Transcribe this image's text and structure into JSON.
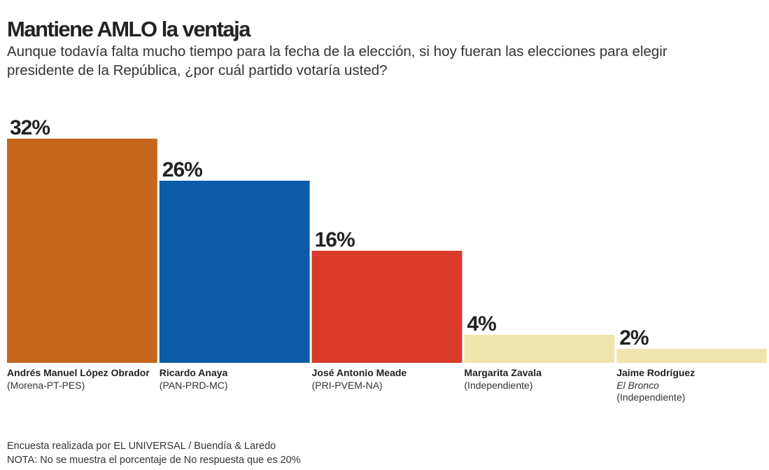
{
  "chart_data": {
    "type": "bar",
    "title": "Mantiene AMLO la ventaja",
    "subtitle": [
      "Aunque todavía falta mucho tiempo para la fecha de la elección, si hoy fueran las elecciones para elegir",
      "presidente de la República, ¿por cuál partido votaría usted?"
    ],
    "categories": [
      "Andrés Manuel López Obrador",
      "Ricardo Anaya",
      "José Antonio Meade",
      "Margarita Zavala",
      "Jaime Rodríguez"
    ],
    "nicknames": [
      null,
      null,
      null,
      null,
      "El Bronco"
    ],
    "parties": [
      "(Morena-PT-PES)",
      "(PAN-PRD-MC)",
      "(PRI-PVEM-NA)",
      "(Independiente)",
      "(Independiente)"
    ],
    "values": [
      32,
      26,
      16,
      4,
      2
    ],
    "value_labels": [
      "32%",
      "26%",
      "16%",
      "4%",
      "2%"
    ],
    "colors": [
      "#c6651c",
      "#0b5ba9",
      "#d93a2a",
      "#efe6ad",
      "#efe6ad"
    ],
    "source": "Encuesta realizada por EL UNIVERSAL / Buendía & Laredo",
    "note": "NOTA: No se muestra el porcentaje de No respuesta que es 20%"
  }
}
